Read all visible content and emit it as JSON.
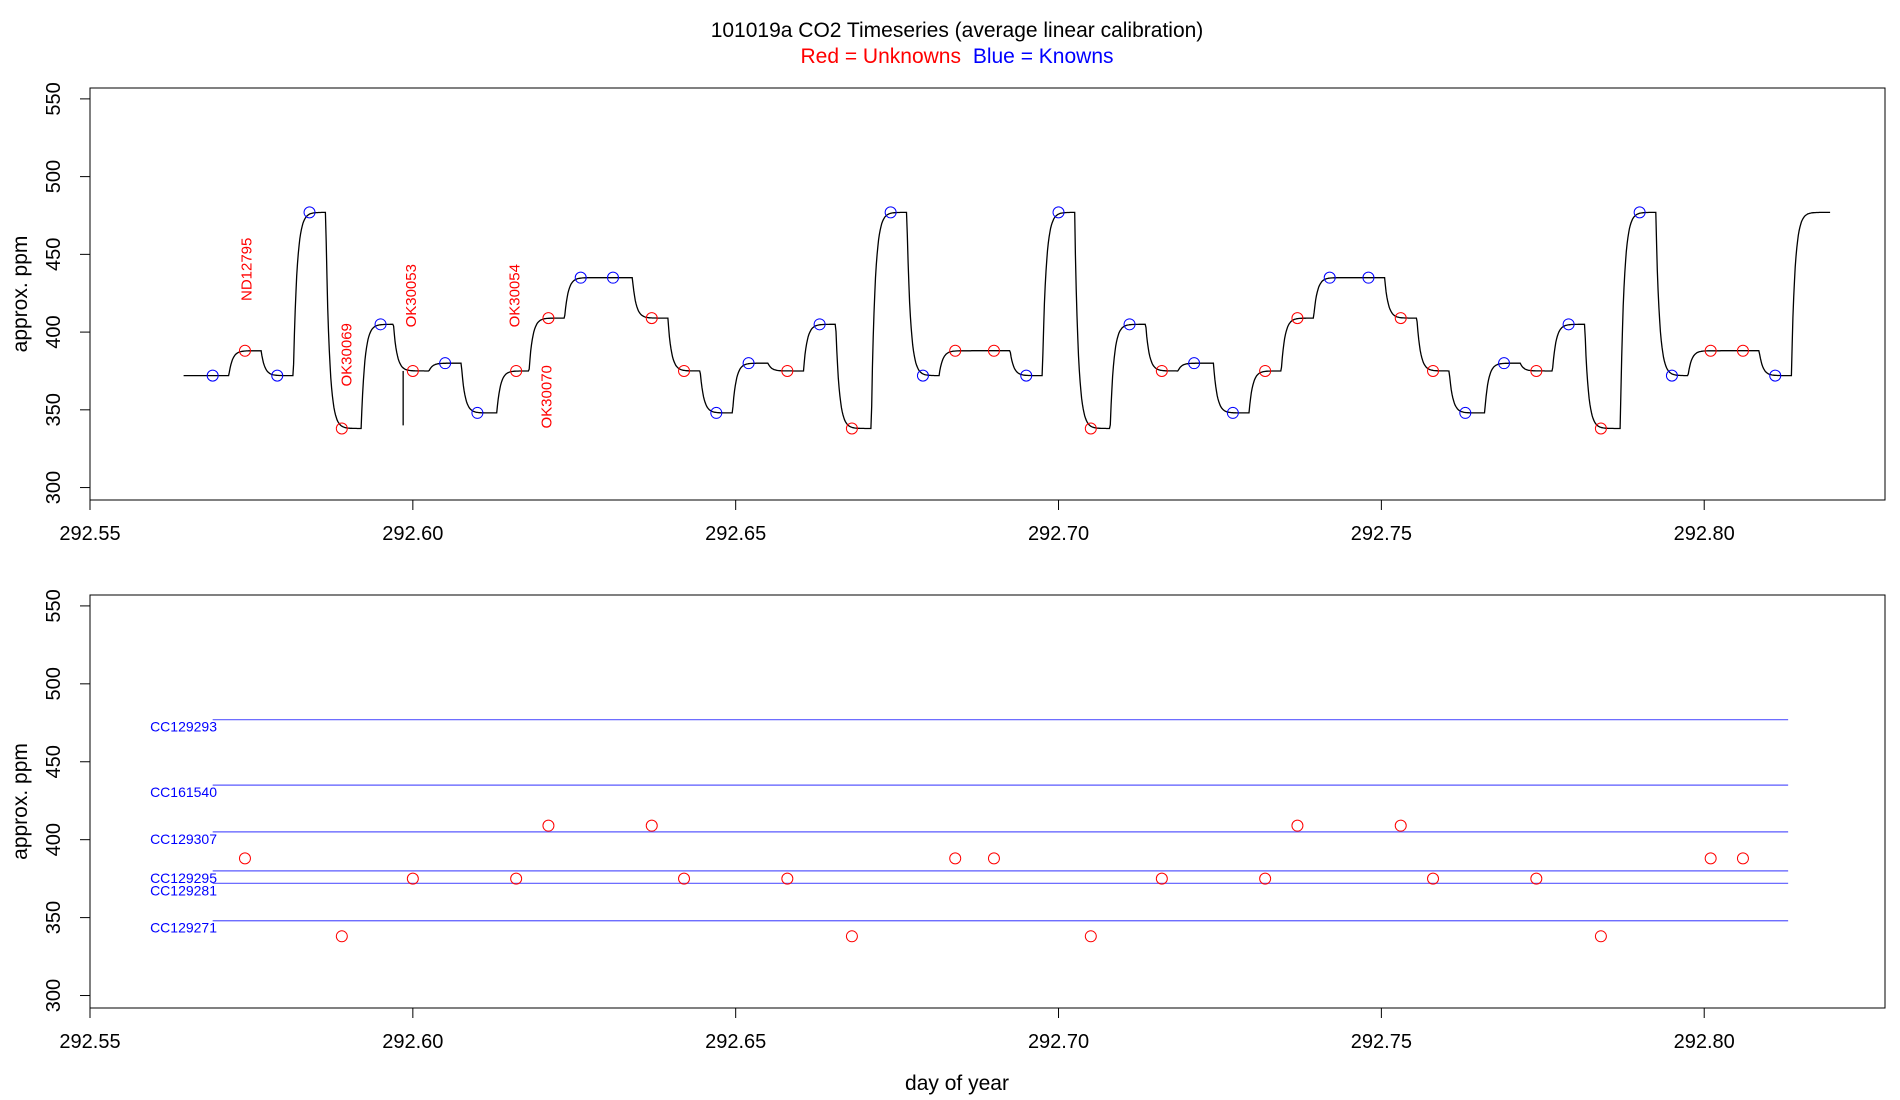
{
  "header": {
    "title": "101019a   CO2 Timeseries (average linear calibration)",
    "legend_red": "Red = Unknowns",
    "legend_blue": "Blue = Knowns"
  },
  "colors": {
    "unknown": "#ff0000",
    "known": "#0000ff",
    "trace": "#000000",
    "ref_line": "#5a5aff"
  },
  "chart_data": [
    {
      "type": "line",
      "panel": "top",
      "ylabel": "approx. ppm",
      "xlabel": "",
      "xlim": [
        292.55,
        292.828
      ],
      "ylim": [
        292,
        557
      ],
      "x_ticks": [
        "292.55",
        "292.60",
        "292.65",
        "292.70",
        "292.75",
        "292.80"
      ],
      "y_ticks": [
        "300",
        "350",
        "400",
        "450",
        "500",
        "550"
      ],
      "known_points": [
        {
          "x": 292.569,
          "y": 372
        },
        {
          "x": 292.579,
          "y": 372
        },
        {
          "x": 292.584,
          "y": 477
        },
        {
          "x": 292.595,
          "y": 405
        },
        {
          "x": 292.605,
          "y": 380
        },
        {
          "x": 292.61,
          "y": 348
        },
        {
          "x": 292.626,
          "y": 435
        },
        {
          "x": 292.631,
          "y": 435
        },
        {
          "x": 292.647,
          "y": 348
        },
        {
          "x": 292.652,
          "y": 380
        },
        {
          "x": 292.663,
          "y": 405
        },
        {
          "x": 292.674,
          "y": 477
        },
        {
          "x": 292.679,
          "y": 372
        },
        {
          "x": 292.695,
          "y": 372
        },
        {
          "x": 292.7,
          "y": 477
        },
        {
          "x": 292.711,
          "y": 405
        },
        {
          "x": 292.721,
          "y": 380
        },
        {
          "x": 292.727,
          "y": 348
        },
        {
          "x": 292.742,
          "y": 435
        },
        {
          "x": 292.748,
          "y": 435
        },
        {
          "x": 292.763,
          "y": 348
        },
        {
          "x": 292.769,
          "y": 380
        },
        {
          "x": 292.779,
          "y": 405
        },
        {
          "x": 292.79,
          "y": 477
        },
        {
          "x": 292.795,
          "y": 372
        },
        {
          "x": 292.811,
          "y": 372
        }
      ],
      "unknown_points": [
        {
          "x": 292.574,
          "y": 388
        },
        {
          "x": 292.589,
          "y": 338
        },
        {
          "x": 292.6,
          "y": 375
        },
        {
          "x": 292.616,
          "y": 375
        },
        {
          "x": 292.621,
          "y": 409
        },
        {
          "x": 292.637,
          "y": 409
        },
        {
          "x": 292.642,
          "y": 375
        },
        {
          "x": 292.658,
          "y": 375
        },
        {
          "x": 292.668,
          "y": 338
        },
        {
          "x": 292.684,
          "y": 388
        },
        {
          "x": 292.69,
          "y": 388
        },
        {
          "x": 292.705,
          "y": 338
        },
        {
          "x": 292.716,
          "y": 375
        },
        {
          "x": 292.732,
          "y": 375
        },
        {
          "x": 292.737,
          "y": 409
        },
        {
          "x": 292.753,
          "y": 409
        },
        {
          "x": 292.758,
          "y": 375
        },
        {
          "x": 292.774,
          "y": 375
        },
        {
          "x": 292.784,
          "y": 338
        },
        {
          "x": 292.801,
          "y": 388
        },
        {
          "x": 292.806,
          "y": 388
        }
      ],
      "trace_levels": [
        {
          "x": 292.5645,
          "y": 372
        },
        {
          "x": 292.5715,
          "y": 388
        },
        {
          "x": 292.5765,
          "y": 372
        },
        {
          "x": 292.5815,
          "y": 477
        },
        {
          "x": 292.5865,
          "y": 338
        },
        {
          "x": 292.592,
          "y": 405
        },
        {
          "x": 292.597,
          "y": 375
        },
        {
          "x": 292.6025,
          "y": 380
        },
        {
          "x": 292.6075,
          "y": 348
        },
        {
          "x": 292.613,
          "y": 375
        },
        {
          "x": 292.618,
          "y": 409
        },
        {
          "x": 292.6235,
          "y": 435
        },
        {
          "x": 292.634,
          "y": 409
        },
        {
          "x": 292.6395,
          "y": 375
        },
        {
          "x": 292.6445,
          "y": 348
        },
        {
          "x": 292.6495,
          "y": 380
        },
        {
          "x": 292.655,
          "y": 375
        },
        {
          "x": 292.6605,
          "y": 405
        },
        {
          "x": 292.6655,
          "y": 338
        },
        {
          "x": 292.671,
          "y": 477
        },
        {
          "x": 292.6765,
          "y": 372
        },
        {
          "x": 292.6815,
          "y": 388
        },
        {
          "x": 292.6925,
          "y": 372
        },
        {
          "x": 292.6975,
          "y": 477
        },
        {
          "x": 292.7025,
          "y": 338
        },
        {
          "x": 292.708,
          "y": 405
        },
        {
          "x": 292.7135,
          "y": 375
        },
        {
          "x": 292.7185,
          "y": 380
        },
        {
          "x": 292.724,
          "y": 348
        },
        {
          "x": 292.7295,
          "y": 375
        },
        {
          "x": 292.7345,
          "y": 409
        },
        {
          "x": 292.7395,
          "y": 435
        },
        {
          "x": 292.7505,
          "y": 409
        },
        {
          "x": 292.7555,
          "y": 375
        },
        {
          "x": 292.7605,
          "y": 348
        },
        {
          "x": 292.766,
          "y": 380
        },
        {
          "x": 292.7715,
          "y": 375
        },
        {
          "x": 292.7765,
          "y": 405
        },
        {
          "x": 292.7815,
          "y": 338
        },
        {
          "x": 292.787,
          "y": 477
        },
        {
          "x": 292.7925,
          "y": 372
        },
        {
          "x": 292.7975,
          "y": 388
        },
        {
          "x": 292.8085,
          "y": 372
        },
        {
          "x": 292.8135,
          "y": 477
        },
        {
          "x": 292.8195,
          "y": 477
        }
      ],
      "spike": {
        "x": 292.5985,
        "y_from": 375,
        "y_to": 340
      },
      "annotations": [
        {
          "text": "ND12795",
          "x": 292.575,
          "y": 420
        },
        {
          "text": "OK30069",
          "x": 292.5905,
          "y": 365
        },
        {
          "text": "OK30053",
          "x": 292.6005,
          "y": 403
        },
        {
          "text": "OK30054",
          "x": 292.6165,
          "y": 403
        },
        {
          "text": "OK30070",
          "x": 292.6215,
          "y": 338
        }
      ]
    },
    {
      "type": "scatter",
      "panel": "bottom",
      "ylabel": "approx. ppm",
      "xlabel": "day of year",
      "xlim": [
        292.55,
        292.828
      ],
      "ylim": [
        292,
        557
      ],
      "x_ticks": [
        "292.55",
        "292.60",
        "292.65",
        "292.70",
        "292.75",
        "292.80"
      ],
      "y_ticks": [
        "300",
        "350",
        "400",
        "450",
        "500",
        "550"
      ],
      "reference_lines": [
        {
          "name": "CC129293",
          "y": 477
        },
        {
          "name": "CC161540",
          "y": 435
        },
        {
          "name": "CC129307",
          "y": 405
        },
        {
          "name": "CC129295",
          "y": 380
        },
        {
          "name": "CC129281",
          "y": 372
        },
        {
          "name": "CC129271",
          "y": 348
        }
      ],
      "ref_line_x": [
        292.569,
        292.813
      ],
      "unknown_points": [
        {
          "x": 292.574,
          "y": 388
        },
        {
          "x": 292.589,
          "y": 338
        },
        {
          "x": 292.6,
          "y": 375
        },
        {
          "x": 292.616,
          "y": 375
        },
        {
          "x": 292.621,
          "y": 409
        },
        {
          "x": 292.637,
          "y": 409
        },
        {
          "x": 292.642,
          "y": 375
        },
        {
          "x": 292.658,
          "y": 375
        },
        {
          "x": 292.668,
          "y": 338
        },
        {
          "x": 292.684,
          "y": 388
        },
        {
          "x": 292.69,
          "y": 388
        },
        {
          "x": 292.705,
          "y": 338
        },
        {
          "x": 292.716,
          "y": 375
        },
        {
          "x": 292.732,
          "y": 375
        },
        {
          "x": 292.737,
          "y": 409
        },
        {
          "x": 292.753,
          "y": 409
        },
        {
          "x": 292.758,
          "y": 375
        },
        {
          "x": 292.774,
          "y": 375
        },
        {
          "x": 292.784,
          "y": 338
        },
        {
          "x": 292.801,
          "y": 388
        },
        {
          "x": 292.806,
          "y": 388
        }
      ]
    }
  ]
}
